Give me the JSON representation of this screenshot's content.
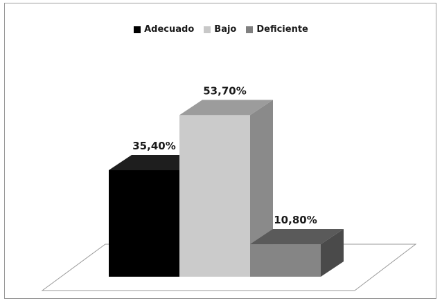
{
  "chart_data": {
    "type": "bar",
    "style": "3d-column",
    "categories": [
      "Adecuado",
      "Bajo",
      "Deficiente"
    ],
    "values": [
      35.4,
      53.7,
      10.8
    ],
    "data_labels": [
      "35,40%",
      "53,70%",
      "10,80%"
    ],
    "unit": "%",
    "ylim": [
      0,
      60
    ],
    "grid": false,
    "legend_position": "top",
    "legend": [
      {
        "label": "Adecuado",
        "color": "#000000"
      },
      {
        "label": "Bajo",
        "color": "#c8c8c8"
      },
      {
        "label": "Deficiente",
        "color": "#808080"
      }
    ],
    "colors": {
      "Adecuado": {
        "front": "#000000",
        "top": "#1e1e1e",
        "side": "#111111"
      },
      "Bajo": {
        "front": "#cbcbcb",
        "top": "#9c9c9c",
        "side": "#8a8a8a"
      },
      "Deficiente": {
        "front": "#858585",
        "top": "#5a5a5a",
        "side": "#4a4a4a"
      }
    }
  }
}
